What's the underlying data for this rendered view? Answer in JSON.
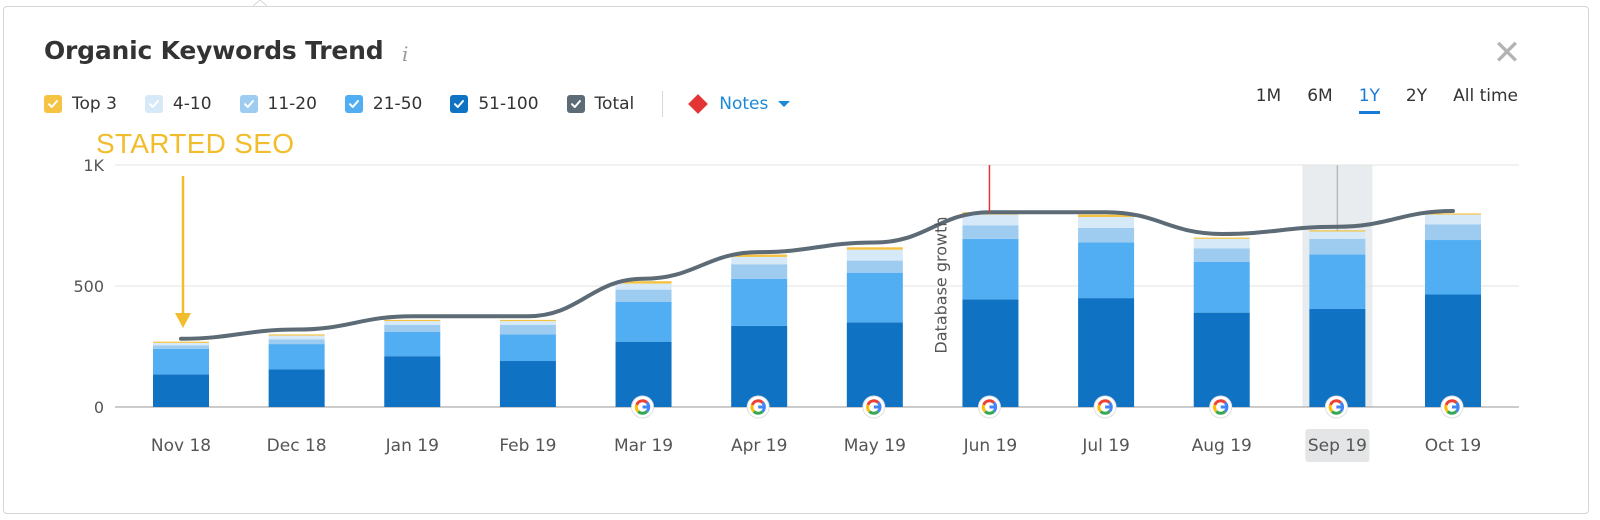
{
  "widget": {
    "title": "Organic Keywords Trend",
    "info_icon": "i",
    "close_icon": "✕"
  },
  "legend": {
    "items": [
      {
        "label": "Top 3",
        "color": "#f5c242",
        "checked": true
      },
      {
        "label": "4-10",
        "color": "#d6e9f8",
        "checked": true
      },
      {
        "label": "11-20",
        "color": "#9ecbf0",
        "checked": true
      },
      {
        "label": "21-50",
        "color": "#52aef2",
        "checked": true
      },
      {
        "label": "51-100",
        "color": "#0f72c2",
        "checked": true
      },
      {
        "label": "Total",
        "color": "#5c6b75",
        "checked": true
      }
    ],
    "notes_label": "Notes",
    "notes_color": "#e33535"
  },
  "ranges": {
    "options": [
      "1M",
      "6M",
      "1Y",
      "2Y",
      "All time"
    ],
    "active": "1Y"
  },
  "annotation": {
    "text": "STARTED SEO",
    "color": "#f2bd2d",
    "target_category": "Nov 18"
  },
  "chart_data": {
    "type": "bar",
    "stacked": true,
    "categories": [
      "Nov 18",
      "Dec 18",
      "Jan 19",
      "Feb 19",
      "Mar 19",
      "Apr 19",
      "May 19",
      "Jun 19",
      "Jul 19",
      "Aug 19",
      "Sep 19",
      "Oct 19"
    ],
    "series": [
      {
        "name": "51-100",
        "color": "#0f72c2",
        "values": [
          135,
          155,
          210,
          190,
          270,
          335,
          350,
          445,
          450,
          390,
          405,
          465
        ]
      },
      {
        "name": "21-50",
        "color": "#52aef2",
        "values": [
          105,
          105,
          100,
          110,
          165,
          195,
          205,
          250,
          230,
          210,
          225,
          225
        ]
      },
      {
        "name": "11-20",
        "color": "#9ecbf0",
        "values": [
          15,
          20,
          30,
          40,
          50,
          60,
          50,
          55,
          60,
          55,
          65,
          65
        ]
      },
      {
        "name": "4-10",
        "color": "#d6e9f8",
        "values": [
          10,
          15,
          15,
          15,
          25,
          30,
          45,
          45,
          45,
          40,
          30,
          40
        ]
      },
      {
        "name": "Top 3",
        "color": "#f5c242",
        "values": [
          5,
          5,
          5,
          5,
          10,
          10,
          10,
          10,
          10,
          5,
          5,
          5
        ]
      }
    ],
    "total": {
      "name": "Total",
      "color": "#5c6b75",
      "values": [
        282,
        320,
        375,
        375,
        530,
        640,
        680,
        805,
        805,
        715,
        745,
        810
      ]
    },
    "y_ticks": [
      0,
      500,
      1000
    ],
    "y_tick_labels": [
      "0",
      "500",
      "1K"
    ],
    "ylim": [
      0,
      1000
    ],
    "grid": true,
    "google_update_markers": [
      "Mar 19",
      "Apr 19",
      "May 19",
      "Jun 19",
      "Jul 19",
      "Aug 19",
      "Sep 19",
      "Oct 19"
    ],
    "highlighted_category": "Sep 19",
    "event": {
      "label": "Database growth",
      "category": "Jun 19"
    },
    "note_marker_category": "Jun 19"
  }
}
